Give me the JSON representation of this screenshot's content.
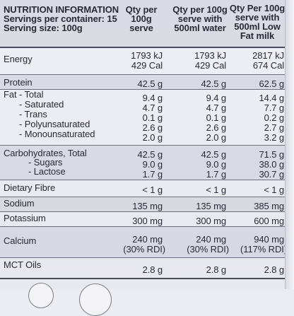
{
  "header": {
    "title": "NUTRITION INFORMATION",
    "servings": "Servings per container: 15",
    "serving_size": "Serving size: 100g",
    "col1": [
      "Qty per",
      "100g",
      "serve"
    ],
    "col2": [
      "Qty per 100g",
      "serve with",
      "500ml water"
    ],
    "col3": [
      "Qty Per 100g",
      "serve with",
      "500ml Low",
      "Fat milk"
    ]
  },
  "energy": {
    "label": "Energy",
    "c1": [
      "1793 kJ",
      "429 Cal"
    ],
    "c2": [
      "1793 kJ",
      "429 Cal"
    ],
    "c3": [
      "2817 kJ",
      "674 Cal"
    ]
  },
  "protein": {
    "label": "Protein",
    "c1": "42.5 g",
    "c2": "42.5 g",
    "c3": "62.5 g"
  },
  "fat": {
    "labels": [
      "Fat  - Total",
      "- Saturated",
      "- Trans",
      "- Polyunsaturated",
      "- Monounsaturated"
    ],
    "c1": [
      "9.4 g",
      "4.7 g",
      "0.1 g",
      "2.6 g",
      "2.0 g"
    ],
    "c2": [
      "9.4 g",
      "4.7 g",
      "0.1 g",
      "2.6 g",
      "2.0 g"
    ],
    "c3": [
      "14.4 g",
      "7.7 g",
      "0.2 g",
      "2.7 g",
      "3.2 g"
    ]
  },
  "carbs": {
    "labels": [
      "Carbohydrates, Total",
      "- Sugars",
      "- Lactose"
    ],
    "c1": [
      "42.5 g",
      "9.0 g",
      "1.7 g"
    ],
    "c2": [
      "42.5 g",
      "9.0 g",
      "1.7 g"
    ],
    "c3": [
      "71.5 g",
      "38.0 g",
      "30.7 g"
    ]
  },
  "fibre": {
    "label": "Dietary Fibre",
    "c1": "< 1 g",
    "c2": "< 1 g",
    "c3": "< 1 g"
  },
  "sodium": {
    "label": "Sodium",
    "c1": "135 mg",
    "c2": "135 mg",
    "c3": "385 mg"
  },
  "potassium": {
    "label": "Potassium",
    "c1": "300 mg",
    "c2": "300 mg",
    "c3": "600 mg"
  },
  "calcium": {
    "label": "Calcium",
    "c1": [
      "240 mg",
      "(30% RDI)"
    ],
    "c2": [
      "240 mg",
      "(30% RDI)"
    ],
    "c3": [
      "940 mg",
      "(117% RDI)"
    ]
  },
  "mct": {
    "label": "MCT Oils",
    "c1": "2.8 g",
    "c2": "2.8 g",
    "c3": "2.8 g"
  }
}
